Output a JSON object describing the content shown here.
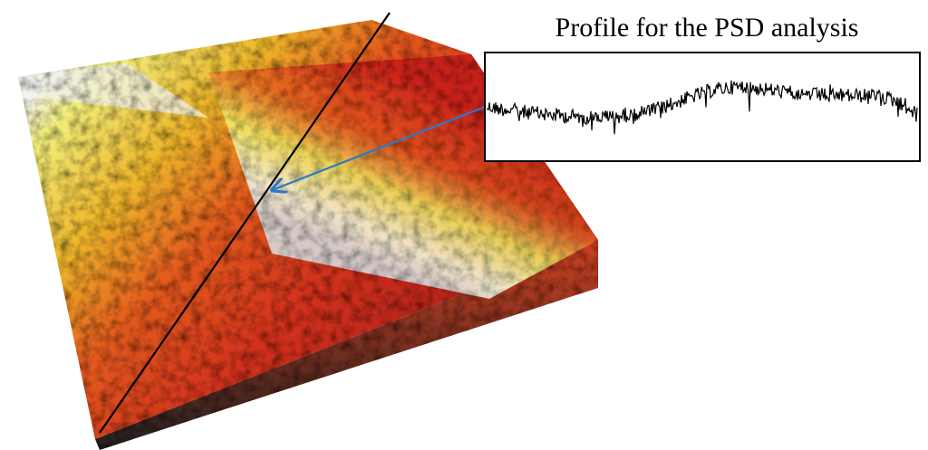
{
  "figure": {
    "title": "Profile for the PSD analysis"
  }
}
